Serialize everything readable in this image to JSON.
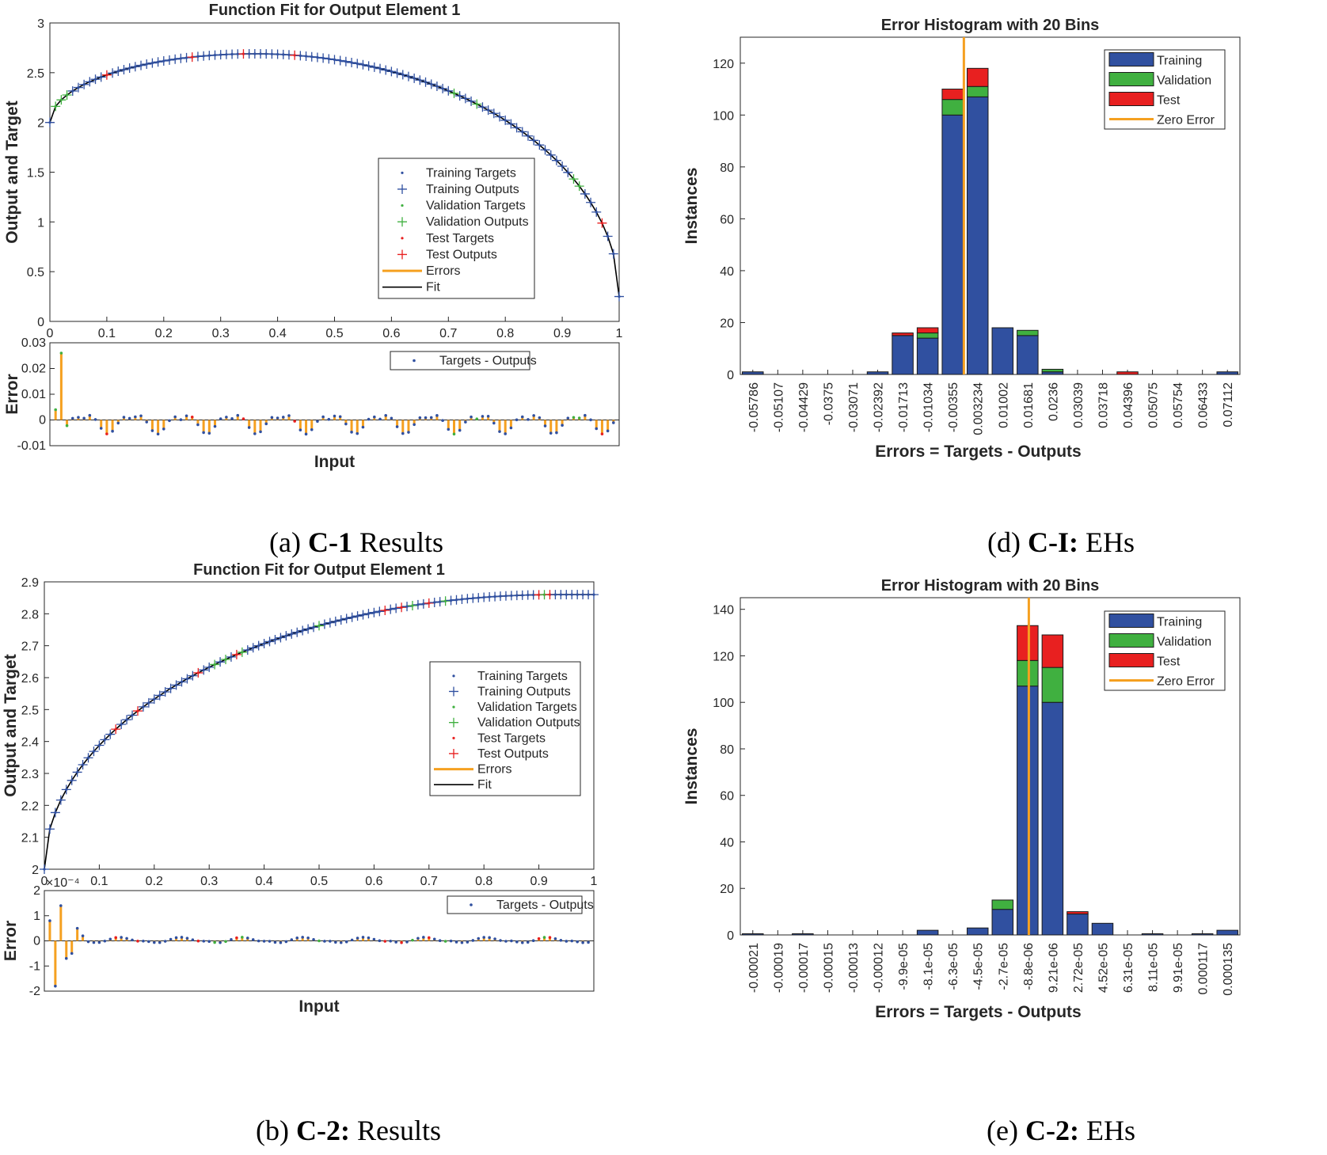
{
  "captions": {
    "a": {
      "pre": "(a) ",
      "bold": "C-1",
      "post": " Results"
    },
    "d": {
      "pre": "(d) ",
      "bold": "C-I:",
      "post": " EHs"
    },
    "b": {
      "pre": "(b) ",
      "bold": "C-2:",
      "post": " Results"
    },
    "e": {
      "pre": "(e) ",
      "bold": "C-2:",
      "post": " EHs"
    }
  },
  "colors": {
    "training": "#3050a0",
    "validation": "#40b040",
    "test": "#e82020",
    "errors": "#f5a020",
    "fit": "#000000",
    "axis": "#262626"
  },
  "chart_data": [
    {
      "id": "fitA",
      "type": "line",
      "title": "Function Fit for Output Element 1",
      "xlabel": "Input",
      "ylabel": "Output and Target",
      "xlim": [
        0,
        1
      ],
      "ylim": [
        0,
        3
      ],
      "xticks": [
        0,
        0.1,
        0.2,
        0.3,
        0.4,
        0.5,
        0.6,
        0.7,
        0.8,
        0.9,
        1
      ],
      "xtick_labels": [
        "0",
        "0.1",
        "0.2",
        "0.3",
        "0.4",
        "0.5",
        "0.6",
        "0.7",
        "0.8",
        "0.9",
        "1"
      ],
      "yticks": [
        0,
        0.5,
        1,
        1.5,
        2,
        2.5,
        3
      ],
      "ytick_labels": [
        "0",
        "0.5",
        "1",
        "1.5",
        "2",
        "2.5",
        "3"
      ],
      "model": {
        "type": "ellipse",
        "y0": 2,
        "a": 0.6931,
        "b": 0.6931,
        "c": 0.1,
        "d": 0.4
      },
      "n_points": 101,
      "validation_x": [
        0.01,
        0.02,
        0.03,
        0.71,
        0.75,
        0.92,
        0.93
      ],
      "test_x": [
        0.1,
        0.25,
        0.34,
        0.43,
        0.97
      ],
      "legend": [
        "Training Targets",
        "Training Outputs",
        "Validation Targets",
        "Validation Outputs",
        "Test Targets",
        "Test Outputs",
        "Errors",
        "Fit"
      ],
      "legend_position": "lower-right",
      "error": {
        "ylabel": "Error",
        "ylim": [
          -0.01,
          0.03
        ],
        "yticks": [
          -0.01,
          0,
          0.01,
          0.02,
          0.03
        ],
        "ytick_labels": [
          "-0.01",
          "0",
          "0.01",
          "0.02",
          "0.03"
        ],
        "legend": "Targets - Outputs",
        "spike_x": [
          0.01,
          0.02
        ],
        "spike_values": [
          0.004,
          0.026
        ],
        "wave_amplitude": 0.0055,
        "wave_cycles": 11.5,
        "wave_phase": 3.6
      }
    },
    {
      "id": "fitB",
      "type": "line",
      "title": "Function Fit for Output Element 1",
      "xlabel": "Input",
      "ylabel": "Output and Target",
      "xlim": [
        0,
        1
      ],
      "ylim": [
        2,
        2.9
      ],
      "xticks": [
        0,
        0.1,
        0.2,
        0.3,
        0.4,
        0.5,
        0.6,
        0.7,
        0.8,
        0.9,
        1
      ],
      "xtick_labels": [
        "0",
        "0.1",
        "0.2",
        "0.3",
        "0.4",
        "0.5",
        "0.6",
        "0.7",
        "0.8",
        "0.9",
        "1"
      ],
      "yticks": [
        2,
        2.1,
        2.2,
        2.3,
        2.4,
        2.5,
        2.6,
        2.7,
        2.8,
        2.9
      ],
      "ytick_labels": [
        "2",
        "2.1",
        "2.2",
        "2.3",
        "2.4",
        "2.5",
        "2.6",
        "2.7",
        "2.8",
        "2.9"
      ],
      "model": {
        "type": "sqrt",
        "y0": 2,
        "amp": 0.86,
        "x_end": 0.93
      },
      "n_points": 101,
      "validation_x": [
        0.31,
        0.33,
        0.36,
        0.5,
        0.67,
        0.73,
        0.91
      ],
      "test_x": [
        0.13,
        0.17,
        0.28,
        0.35,
        0.62,
        0.65,
        0.7,
        0.9,
        0.92
      ],
      "legend": [
        "Training Targets",
        "Training Outputs",
        "Validation Targets",
        "Validation Outputs",
        "Test Targets",
        "Test Outputs",
        "Errors",
        "Fit"
      ],
      "legend_position": "right",
      "error": {
        "ylabel": "Error",
        "multiplier": "×10⁻⁴",
        "ylim": [
          -2,
          2
        ],
        "yticks": [
          -2,
          -1,
          0,
          1,
          2
        ],
        "ytick_labels": [
          "-2",
          "-1",
          "0",
          "1",
          "2"
        ],
        "legend": "Targets - Outputs",
        "spike_x": [
          0.01,
          0.02,
          0.03,
          0.04,
          0.05,
          0.06,
          0.07
        ],
        "spike_values": [
          0.8,
          -1.8,
          1.4,
          -0.7,
          -0.5,
          0.5,
          0.2
        ],
        "wave_amplitude": 0.15,
        "wave_cycles": 9,
        "wave_phase": 0
      }
    },
    {
      "id": "histD",
      "type": "bar",
      "stacked": true,
      "title": "Error Histogram with 20 Bins",
      "xlabel": "Errors = Targets - Outputs",
      "ylabel": "Instances",
      "ylim": [
        0,
        130
      ],
      "yticks": [
        0,
        20,
        40,
        60,
        80,
        100,
        120
      ],
      "ytick_labels": [
        "0",
        "20",
        "40",
        "60",
        "80",
        "100",
        "120"
      ],
      "categories": [
        "-0.05786",
        "-0.05107",
        "-0.04429",
        "-0.0375",
        "-0.03071",
        "-0.02392",
        "-0.01713",
        "-0.01034",
        "-0.00355",
        "0.003234",
        "0.01002",
        "0.01681",
        "0.0236",
        "0.03039",
        "0.03718",
        "0.04396",
        "0.05075",
        "0.05754",
        "0.06433",
        "0.07112"
      ],
      "series": [
        {
          "name": "Training",
          "values": [
            1,
            0,
            0,
            0,
            0,
            1,
            15,
            14,
            100,
            107,
            18,
            15,
            1,
            0,
            0,
            0,
            0,
            0,
            0,
            1
          ]
        },
        {
          "name": "Validation",
          "values": [
            0,
            0,
            0,
            0,
            0,
            0,
            0,
            2,
            6,
            4,
            0,
            2,
            1,
            0,
            0,
            0,
            0,
            0,
            0,
            0
          ]
        },
        {
          "name": "Test",
          "values": [
            0,
            0,
            0,
            0,
            0,
            0,
            1,
            2,
            4,
            7,
            0,
            0,
            0,
            0,
            0,
            1,
            0,
            0,
            0,
            0
          ]
        }
      ],
      "zero_error_position": 8.95,
      "legend": [
        "Training",
        "Validation",
        "Test",
        "Zero Error"
      ],
      "legend_position": "top-right"
    },
    {
      "id": "histE",
      "type": "bar",
      "stacked": true,
      "title": "Error Histogram with 20 Bins",
      "xlabel": "Errors = Targets - Outputs",
      "ylabel": "Instances",
      "ylim": [
        0,
        145
      ],
      "yticks": [
        0,
        20,
        40,
        60,
        80,
        100,
        120,
        140
      ],
      "ytick_labels": [
        "0",
        "20",
        "40",
        "60",
        "80",
        "100",
        "120",
        "140"
      ],
      "categories": [
        "-0.00021",
        "-0.00019",
        "-0.00017",
        "-0.00015",
        "-0.00013",
        "-0.00012",
        "-9.9e-05",
        "-8.1e-05",
        "-6.3e-05",
        "-4.5e-05",
        "-2.7e-05",
        "-8.8e-06",
        "9.21e-06",
        "2.72e-05",
        "4.52e-05",
        "6.31e-05",
        "8.11e-05",
        "9.91e-05",
        "0.000117",
        "0.000135"
      ],
      "series": [
        {
          "name": "Training",
          "values": [
            0.5,
            0,
            0.5,
            0,
            0,
            0,
            0,
            2,
            0,
            3,
            11,
            107,
            100,
            9,
            5,
            0,
            0.5,
            0,
            0.5,
            2
          ]
        },
        {
          "name": "Validation",
          "values": [
            0,
            0,
            0,
            0,
            0,
            0,
            0,
            0,
            0,
            0,
            4,
            11,
            15,
            0,
            0,
            0,
            0,
            0,
            0,
            0
          ]
        },
        {
          "name": "Test",
          "values": [
            0,
            0,
            0,
            0,
            0,
            0,
            0,
            0,
            0,
            0,
            0,
            15,
            14,
            1,
            0,
            0,
            0,
            0,
            0,
            0
          ]
        }
      ],
      "zero_error_position": 11.55,
      "legend": [
        "Training",
        "Validation",
        "Test",
        "Zero Error"
      ],
      "legend_position": "top-right"
    }
  ]
}
